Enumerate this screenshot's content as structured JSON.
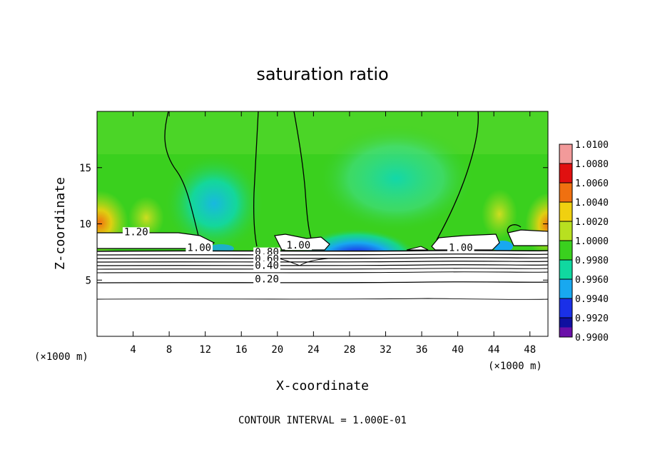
{
  "chart_data": {
    "type": "heatmap",
    "title": "saturation ratio",
    "xlabel": "X-coordinate",
    "ylabel": "Z-coordinate",
    "x_unit_note_left": "(×1000 m)",
    "x_unit_note_right": "(×1000 m)",
    "xlim": [
      0,
      50
    ],
    "ylim": [
      0,
      20
    ],
    "x_ticks": [
      4,
      8,
      12,
      16,
      20,
      24,
      28,
      32,
      36,
      40,
      44,
      48
    ],
    "y_ticks": [
      5,
      10,
      15
    ],
    "footer": "CONTOUR INTERVAL = 1.000E-01",
    "colorbar": {
      "levels": [
        "1.0100",
        "1.0080",
        "1.0060",
        "1.0040",
        "1.0020",
        "1.0000",
        "0.9980",
        "0.9960",
        "0.9940",
        "0.9920",
        "0.9900"
      ],
      "colors": [
        "#f29a9a",
        "#e01010",
        "#f07010",
        "#f0d010",
        "#b8e020",
        "#3ad01e",
        "#10d8a0",
        "#18a8f0",
        "#1a30e8",
        "#1010a0",
        "#6a10a8"
      ]
    },
    "contour_labels": [
      {
        "text": "1.00",
        "x": 10.0,
        "y": 7.6
      },
      {
        "text": "1.00",
        "x": 21.0,
        "y": 7.8
      },
      {
        "text": "1.00",
        "x": 39.0,
        "y": 7.6
      },
      {
        "text": "1.20",
        "x": 3.0,
        "y": 9.0
      },
      {
        "text": "0.80",
        "x": 17.5,
        "y": 7.2
      },
      {
        "text": "0.60",
        "x": 17.5,
        "y": 6.6
      },
      {
        "text": "0.40",
        "x": 17.5,
        "y": 6.0
      },
      {
        "text": "0.20",
        "x": 17.5,
        "y": 4.8
      }
    ],
    "grid": false
  }
}
